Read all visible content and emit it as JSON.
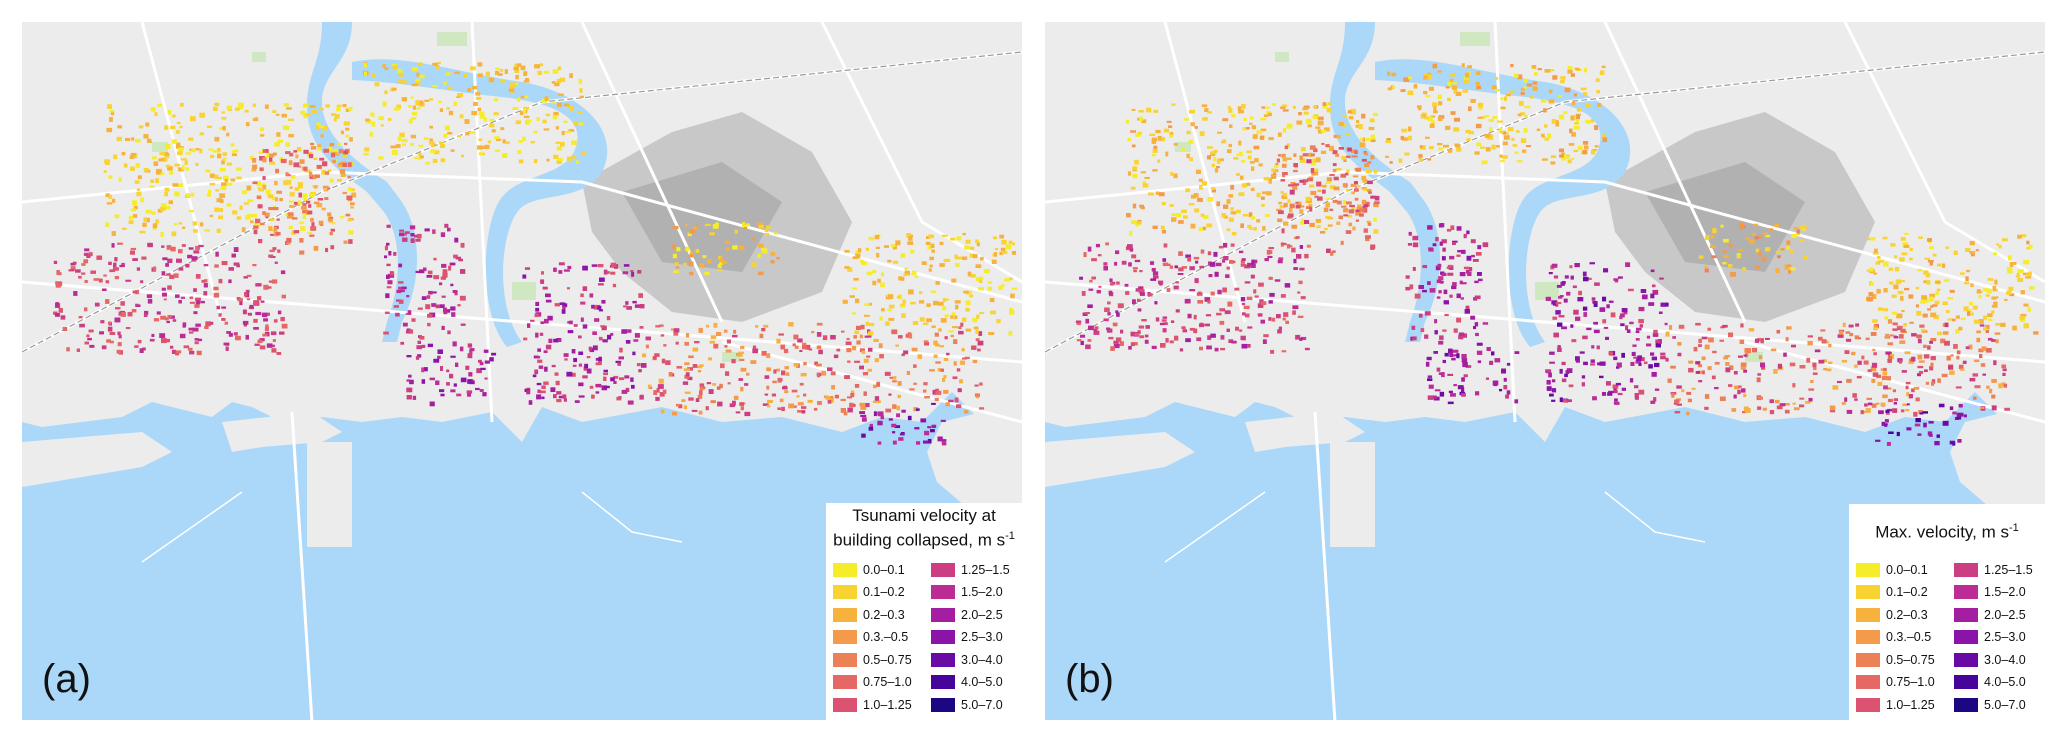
{
  "panels": [
    {
      "id": "a",
      "label": "(a)",
      "legend_title_line1": "Tsunami velocity at",
      "legend_title_line2": "building collapsed, m s",
      "legend_unit_exponent": "-1"
    },
    {
      "id": "b",
      "label": "(b)",
      "legend_title_line1": "",
      "legend_title_line2": "Max. velocity, m s",
      "legend_unit_exponent": "-1"
    }
  ],
  "legend": {
    "classes": [
      {
        "label": "0.0–0.1",
        "color": "#f5ec2a"
      },
      {
        "label": "0.1–0.2",
        "color": "#f8d331"
      },
      {
        "label": "0.2–0.3",
        "color": "#f7b13d"
      },
      {
        "label": "0.3.–0.5",
        "color": "#f39a4b"
      },
      {
        "label": "0.5–0.75",
        "color": "#ec8057"
      },
      {
        "label": "0.75–1.0",
        "color": "#e56864"
      },
      {
        "label": "1.0–1.25",
        "color": "#db5371"
      },
      {
        "label": "1.25–1.5",
        "color": "#cc3e83"
      },
      {
        "label": "1.5–2.0",
        "color": "#bb2c94"
      },
      {
        "label": "2.0–2.5",
        "color": "#a41ea2"
      },
      {
        "label": "2.5–3.0",
        "color": "#8a13a8"
      },
      {
        "label": "3.0–4.0",
        "color": "#6a0aa6"
      },
      {
        "label": "4.0–5.0",
        "color": "#47049b"
      },
      {
        "label": "5.0–7.0",
        "color": "#1c0682"
      }
    ]
  },
  "map_colors": {
    "sea": "#abd8f8",
    "land": "#ececec",
    "road": "#ffffff",
    "park": "#cfe8c2"
  }
}
